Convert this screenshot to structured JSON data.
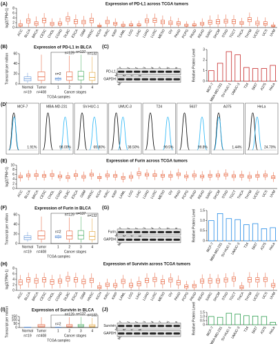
{
  "chart_data": [
    {
      "type": "box",
      "label": "(A)",
      "title": "Expression of PD-L1 across TCGA tumors",
      "ylabel": "log2(TPM+1)",
      "color": "#e4572e",
      "ylim": [
        0,
        8
      ],
      "yticks": [
        0,
        2,
        4,
        6,
        8
      ],
      "categories": [
        "ACC",
        "BLCA",
        "BRCA",
        "CESC",
        "CHOL",
        "COAD",
        "DLBC",
        "ESCA",
        "GBM",
        "HNSC",
        "KICH",
        "KIRC",
        "KIRP",
        "LAML",
        "LGG",
        "LIHC",
        "LUAD",
        "LUSC",
        "MESO",
        "OV",
        "PAAD",
        "PCPG",
        "PRAD",
        "READ",
        "SARC",
        "SKCM",
        "STAD",
        "TGCT",
        "THCA",
        "THYM",
        "UCEC",
        "UCS",
        "UVM"
      ],
      "values": [
        [
          0,
          0.5,
          1,
          1.6,
          3.2
        ],
        [
          0.2,
          1.8,
          2.8,
          3.6,
          5.8
        ],
        [
          0,
          1,
          1.7,
          2.4,
          4.6
        ],
        [
          0.3,
          2,
          3,
          3.9,
          6
        ],
        [
          0.1,
          0.9,
          1.5,
          2.2,
          3.8
        ],
        [
          0.1,
          1,
          1.6,
          2.3,
          4
        ],
        [
          1,
          2.6,
          3.6,
          4.5,
          6.4
        ],
        [
          0.2,
          1.6,
          2.5,
          3.3,
          5.4
        ],
        [
          0.3,
          1.5,
          2.3,
          3,
          4.8
        ],
        [
          0.4,
          2,
          3,
          3.9,
          6
        ],
        [
          0,
          0.3,
          0.6,
          1,
          2
        ],
        [
          0.3,
          1.6,
          2.3,
          3,
          4.6
        ],
        [
          0.1,
          1,
          1.6,
          2.2,
          3.8
        ],
        [
          0,
          0.5,
          0.9,
          1.4,
          2.6
        ],
        [
          0,
          0.6,
          1,
          1.5,
          2.8
        ],
        [
          0,
          0.6,
          1,
          1.5,
          2.8
        ],
        [
          0.4,
          2,
          2.8,
          3.6,
          5.6
        ],
        [
          0.4,
          2.1,
          3,
          3.8,
          5.8
        ],
        [
          0.2,
          1.5,
          2.3,
          3.1,
          5
        ],
        [
          0.2,
          1.2,
          1.9,
          2.7,
          4.6
        ],
        [
          0.1,
          1.1,
          1.7,
          2.4,
          4
        ],
        [
          0,
          0.5,
          0.9,
          1.4,
          2.6
        ],
        [
          0,
          0.6,
          1,
          1.5,
          2.8
        ],
        [
          0.1,
          1,
          1.5,
          2.2,
          3.8
        ],
        [
          0.2,
          1.4,
          2.2,
          3,
          5
        ],
        [
          0.2,
          1.5,
          2.4,
          3.3,
          5.4
        ],
        [
          0.3,
          1.8,
          2.6,
          3.4,
          5.4
        ],
        [
          0.3,
          1.6,
          2.5,
          3.3,
          5.2
        ],
        [
          0.2,
          1.3,
          1.9,
          2.5,
          4
        ],
        [
          0.6,
          2.4,
          3.3,
          4.1,
          6.2
        ],
        [
          0.1,
          1.1,
          1.8,
          2.6,
          4.4
        ],
        [
          0.1,
          1,
          1.6,
          2.4,
          4.2
        ],
        [
          0,
          0.3,
          0.6,
          1.1,
          2.2
        ]
      ]
    },
    {
      "type": "group_box",
      "label": "(B)",
      "title": "Expression of PD-L1 in BLCA",
      "ylabel": "Transcript per million",
      "xlabel": "TCGA samples",
      "ylim": [
        0,
        60
      ],
      "yticks": [
        0,
        20,
        40,
        60
      ],
      "groups": [
        {
          "categories": [
            "Normal",
            "Tumor"
          ],
          "n_labels": [
            "n=19",
            "n=408"
          ],
          "colors": [
            "#5b8fd6",
            "#e4572e"
          ],
          "values": [
            [
              2,
              6,
              10,
              14,
              22
            ],
            [
              1,
              7,
              14,
              24,
              58
            ]
          ]
        },
        {
          "name": "Cancer stages",
          "categories": [
            "1",
            "2",
            "3",
            "4"
          ],
          "n_labels": [
            "n=2",
            "n=129",
            "n=137",
            "n=132"
          ],
          "colors": [
            "#5b8fd6",
            "#e4572e",
            "#3aa655",
            "#e0a030"
          ],
          "values": [
            [
              6,
              8,
              10,
              12,
              14
            ],
            [
              1,
              7,
              14,
              24,
              56
            ],
            [
              1,
              8,
              15,
              25,
              58
            ],
            [
              1,
              7,
              13,
              23,
              54
            ]
          ]
        }
      ]
    },
    {
      "type": "bar",
      "label": "(C)",
      "blot_rows": [
        "PD-L1",
        "GAPDH"
      ],
      "ylabel": "Relative Protein Level",
      "color": "#c62828",
      "ylim": [
        0,
        3
      ],
      "yticks": [
        0,
        1,
        2,
        3
      ],
      "categories": [
        "MCF-7",
        "MBA-MD-231",
        "SV-HUC-1",
        "UMUC-3",
        "T24",
        "5637",
        "A375",
        "HeLa"
      ],
      "values": [
        1,
        1.7,
        2.8,
        2.5,
        1.3,
        1.2,
        1.2,
        1.5
      ]
    },
    {
      "type": "flow",
      "label": "(D)",
      "color": "#29b6f6",
      "categories": [
        "MCF-7",
        "MBA-MD-231",
        "SV-HUC-1",
        "UMUC-3",
        "T24",
        "5637",
        "A375",
        "HeLa"
      ],
      "values": [
        1.91,
        98,
        69.8,
        38.5,
        99.5,
        99.8,
        1.44,
        24.7
      ],
      "value_labels": [
        "1.91%",
        "98.00%",
        "69.80%",
        "38.50%",
        "99.5%",
        "99.8%",
        "1.44%",
        "24.70%"
      ]
    },
    {
      "type": "box",
      "label": "(E)",
      "title": "Expression of Furin across TCGA tumors",
      "ylabel": "log2(TPM+1)",
      "color": "#e4572e",
      "ylim": [
        0,
        10
      ],
      "yticks": [
        0,
        2,
        4,
        6,
        8,
        10
      ],
      "categories": [
        "ACC",
        "BLCA",
        "BRCA",
        "CESC",
        "CHOL",
        "COAD",
        "DLBC",
        "ESCA",
        "GBM",
        "HNSC",
        "KICH",
        "KIRC",
        "KIRP",
        "LAML",
        "LGG",
        "LIHC",
        "LUAD",
        "LUSC",
        "MESO",
        "OV",
        "PAAD",
        "PCPG",
        "PRAD",
        "READ",
        "SARC",
        "SKCM",
        "STAD",
        "TGCT",
        "THCA",
        "THYM",
        "UCEC",
        "UCS",
        "UVM"
      ],
      "values": [
        [
          3,
          4.5,
          5,
          5.6,
          7
        ],
        [
          3.5,
          5,
          5.6,
          6.2,
          7.8
        ],
        [
          3.6,
          5.1,
          5.7,
          6.3,
          8
        ],
        [
          3.4,
          4.8,
          5.4,
          6,
          7.6
        ],
        [
          3.8,
          5.2,
          5.8,
          6.4,
          8
        ],
        [
          3.2,
          4.6,
          5.2,
          5.8,
          7.4
        ],
        [
          2.8,
          4.2,
          4.8,
          5.4,
          7
        ],
        [
          3.6,
          5.1,
          5.7,
          6.3,
          8
        ],
        [
          3,
          4.4,
          5,
          5.6,
          7.2
        ],
        [
          3.8,
          5.3,
          5.9,
          6.5,
          8.2
        ],
        [
          3,
          4.2,
          4.7,
          5.2,
          6.6
        ],
        [
          3.6,
          5,
          5.6,
          6.2,
          7.8
        ],
        [
          3.4,
          4.8,
          5.4,
          6,
          7.6
        ],
        [
          2.6,
          4,
          4.6,
          5.2,
          6.8
        ],
        [
          3,
          4.4,
          5,
          5.6,
          7.2
        ],
        [
          4,
          5.6,
          6.4,
          7.1,
          9
        ],
        [
          3.8,
          5.3,
          5.9,
          6.5,
          8.2
        ],
        [
          3.6,
          5.1,
          5.7,
          6.3,
          8
        ],
        [
          3.4,
          4.9,
          5.5,
          6.1,
          7.8
        ],
        [
          3.4,
          4.8,
          5.4,
          6,
          7.6
        ],
        [
          4,
          5.5,
          6.1,
          6.7,
          8.4
        ],
        [
          3.2,
          4.6,
          5.2,
          5.8,
          7.4
        ],
        [
          3.6,
          5,
          5.6,
          6.2,
          7.8
        ],
        [
          3.2,
          4.6,
          5.2,
          5.8,
          7.4
        ],
        [
          3.4,
          4.9,
          5.5,
          6.1,
          7.8
        ],
        [
          3.6,
          5,
          5.6,
          6.2,
          7.8
        ],
        [
          3.8,
          5.3,
          5.9,
          6.5,
          8.2
        ],
        [
          3.2,
          4.7,
          5.3,
          5.9,
          7.6
        ],
        [
          3.4,
          4.8,
          5.4,
          6,
          7.6
        ],
        [
          3,
          4.4,
          5,
          5.6,
          7.2
        ],
        [
          3.4,
          4.8,
          5.4,
          6,
          7.6
        ],
        [
          3.6,
          5,
          5.6,
          6.2,
          7.8
        ],
        [
          2.8,
          4.2,
          4.8,
          5.4,
          7
        ]
      ]
    },
    {
      "type": "group_box",
      "label": "(F)",
      "title": "Expression of Furin in BLCA",
      "ylabel": "Transcript per million",
      "xlabel": "TCGA samples",
      "ylim": [
        0,
        60
      ],
      "yticks": [
        0,
        20,
        40,
        60
      ],
      "groups": [
        {
          "categories": [
            "Normal",
            "Tumor"
          ],
          "n_labels": [
            "n=19",
            "n=408"
          ],
          "colors": [
            "#5b8fd6",
            "#e4572e"
          ],
          "values": [
            [
              4,
              8,
              12,
              16,
              24
            ],
            [
              2,
              9,
              16,
              26,
              56
            ]
          ]
        },
        {
          "name": "Cancer stages",
          "categories": [
            "1",
            "2",
            "3",
            "4"
          ],
          "n_labels": [
            "n=2",
            "n=129",
            "n=137",
            "n=132"
          ],
          "colors": [
            "#5b8fd6",
            "#e4572e",
            "#3aa655",
            "#e0a030"
          ],
          "values": [
            [
              10,
              12,
              14,
              16,
              18
            ],
            [
              2,
              9,
              16,
              26,
              54
            ],
            [
              2,
              9,
              17,
              27,
              56
            ],
            [
              2,
              8,
              15,
              25,
              52
            ]
          ]
        }
      ]
    },
    {
      "type": "bar",
      "label": "(G)",
      "blot_rows": [
        "Furin",
        "GAPDH"
      ],
      "ylabel": "Relative Protein Level",
      "color": "#1e88e5",
      "ylim": [
        0,
        1.5
      ],
      "yticks": [
        0,
        0.5,
        {
          "value": 1,
          "label": "1.0"
        },
        1.5
      ],
      "categories": [
        "MCF-7",
        "MBA-MD-231",
        "SV-HUC-1",
        "UMUC-3",
        "T24",
        "5637",
        "A375",
        "HeLa"
      ],
      "values": [
        1,
        1.35,
        1.1,
        1.05,
        0.8,
        0.85,
        0.6,
        0.65
      ]
    },
    {
      "type": "box",
      "label": "(H)",
      "title": "Expression of Survivin across TCGA tumors",
      "ylabel": "log2(TPM+1)",
      "color": "#e4572e",
      "ylim": [
        0,
        8
      ],
      "yticks": [
        0,
        2,
        4,
        6,
        8
      ],
      "categories": [
        "ACC",
        "BLCA",
        "BRCA",
        "CESC",
        "CHOL",
        "COAD",
        "DLBC",
        "ESCA",
        "GBM",
        "HNSC",
        "KICH",
        "KIRC",
        "KIRP",
        "LAML",
        "LGG",
        "LIHC",
        "LUAD",
        "LUSC",
        "MESO",
        "OV",
        "PAAD",
        "PCPG",
        "PRAD",
        "READ",
        "SARC",
        "SKCM",
        "STAD",
        "TGCT",
        "THCA",
        "THYM",
        "UCEC",
        "UCS",
        "UVM"
      ],
      "values": [
        [
          0.5,
          2,
          3,
          3.8,
          5.6
        ],
        [
          1,
          3,
          3.9,
          4.6,
          6.4
        ],
        [
          0.8,
          2.6,
          3.5,
          4.3,
          6
        ],
        [
          1,
          3,
          3.9,
          4.6,
          6.4
        ],
        [
          0.6,
          2.2,
          3.1,
          3.9,
          5.6
        ],
        [
          0.8,
          2.6,
          3.4,
          4.1,
          5.8
        ],
        [
          1.2,
          3.4,
          4.3,
          5,
          6.8
        ],
        [
          1,
          3,
          3.9,
          4.6,
          6.4
        ],
        [
          0.8,
          2.4,
          3.2,
          4,
          5.6
        ],
        [
          0.9,
          2.8,
          3.7,
          4.4,
          6.2
        ],
        [
          0,
          0.6,
          1.1,
          1.7,
          3
        ],
        [
          0.3,
          1.4,
          2,
          2.7,
          4.2
        ],
        [
          0.2,
          1.2,
          1.8,
          2.5,
          4
        ],
        [
          0.8,
          2.5,
          3.3,
          4,
          5.6
        ],
        [
          0.2,
          1.2,
          1.8,
          2.6,
          4.2
        ],
        [
          0.3,
          1.6,
          2.4,
          3.2,
          5
        ],
        [
          0.9,
          2.8,
          3.6,
          4.4,
          6.2
        ],
        [
          1.1,
          3.2,
          4,
          4.7,
          6.4
        ],
        [
          0.7,
          2.3,
          3.1,
          3.9,
          5.6
        ],
        [
          1,
          3,
          3.8,
          4.5,
          6.2
        ],
        [
          0.5,
          2,
          2.8,
          3.6,
          5.4
        ],
        [
          0,
          0.8,
          1.4,
          2,
          3.4
        ],
        [
          0.1,
          1,
          1.6,
          2.2,
          3.6
        ],
        [
          0.8,
          2.6,
          3.4,
          4.1,
          5.8
        ],
        [
          0.8,
          2.6,
          3.5,
          4.3,
          6
        ],
        [
          0.9,
          2.7,
          3.5,
          4.2,
          5.8
        ],
        [
          1,
          3,
          3.8,
          4.5,
          6.2
        ],
        [
          1.2,
          3.4,
          4.2,
          4.9,
          6.6
        ],
        [
          0,
          0.6,
          1.1,
          1.7,
          3
        ],
        [
          1,
          3,
          3.9,
          4.7,
          6.6
        ],
        [
          1,
          3,
          3.9,
          4.6,
          6.4
        ],
        [
          1.1,
          3.2,
          4,
          4.7,
          6.4
        ],
        [
          0.2,
          1.2,
          1.8,
          2.5,
          4
        ]
      ]
    },
    {
      "type": "group_box",
      "label": "(I)",
      "title": "Expression of Survivin in BLCA",
      "ylabel": "Transcript per million",
      "xlabel": "TCGA samples",
      "ylim": [
        0,
        150
      ],
      "yticks": [
        0,
        50,
        100,
        150
      ],
      "groups": [
        {
          "categories": [
            "Normal",
            "Tumor"
          ],
          "n_labels": [
            "n=19",
            "n=408"
          ],
          "colors": [
            "#5b8fd6",
            "#e4572e"
          ],
          "values": [
            [
              0,
              2,
              3,
              5,
              8
            ],
            [
              0,
              8,
              20,
              40,
              140
            ]
          ]
        },
        {
          "name": "Cancer stages",
          "categories": [
            "1",
            "2",
            "3",
            "4"
          ],
          "n_labels": [
            "n=2",
            "n=129",
            "n=137",
            "n=132"
          ],
          "colors": [
            "#5b8fd6",
            "#e4572e",
            "#3aa655",
            "#e0a030"
          ],
          "values": [
            [
              2,
              4,
              5,
              6,
              8
            ],
            [
              0,
              8,
              20,
              40,
              140
            ],
            [
              0,
              9,
              22,
              42,
              145
            ],
            [
              0,
              8,
              19,
              38,
              130
            ]
          ]
        }
      ]
    },
    {
      "type": "bar",
      "label": "(J)",
      "blot_rows": [
        "Survivin",
        "GAPDH"
      ],
      "ylabel": "Relative Protein Level",
      "color": "#2e9e4f",
      "ylim": [
        0,
        1.5
      ],
      "yticks": [
        0,
        0.5,
        {
          "value": 1,
          "label": "1.0"
        },
        1.5
      ],
      "categories": [
        "MCF-7",
        "MBA-MD-231",
        "SV-HUC-1",
        "UMUC-3",
        "T24",
        "5637",
        "A375",
        "HeLa"
      ],
      "values": [
        1,
        0.9,
        1.4,
        1.3,
        1.1,
        1.05,
        1,
        0.3
      ]
    }
  ]
}
